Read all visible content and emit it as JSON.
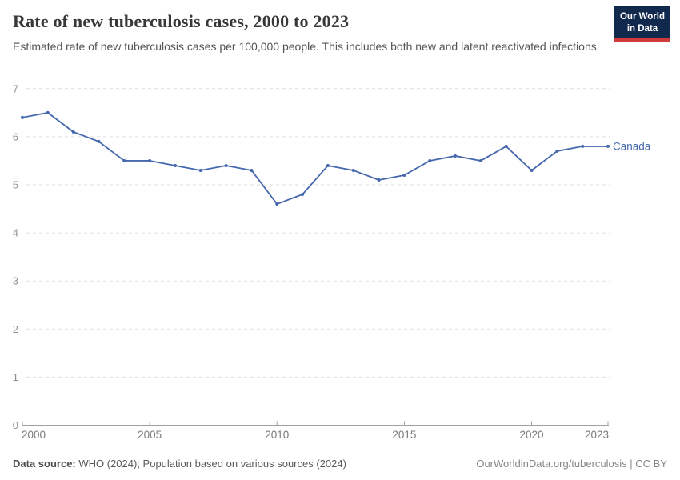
{
  "header": {
    "title": "Rate of new tuberculosis cases, 2000 to 2023",
    "subtitle": "Estimated rate of new tuberculosis cases per 100,000 people. This includes both new and latent reactivated infections.",
    "logo": {
      "line1": "Our World",
      "line2": "in Data"
    }
  },
  "chart_data": {
    "type": "line",
    "title": "Rate of new tuberculosis cases, 2000 to 2023",
    "x": [
      2000,
      2001,
      2002,
      2003,
      2004,
      2005,
      2006,
      2007,
      2008,
      2009,
      2010,
      2011,
      2012,
      2013,
      2014,
      2015,
      2016,
      2017,
      2018,
      2019,
      2020,
      2021,
      2022,
      2023
    ],
    "series": [
      {
        "name": "Canada",
        "values": [
          6.4,
          6.5,
          6.1,
          5.9,
          5.5,
          5.5,
          5.4,
          5.3,
          5.4,
          5.3,
          4.6,
          4.8,
          5.4,
          5.3,
          5.1,
          5.2,
          5.5,
          5.6,
          5.5,
          5.8,
          5.3,
          5.7,
          5.8,
          5.8
        ],
        "color": "#4467ad"
      }
    ],
    "xlabel": "",
    "ylabel": "",
    "ylim": [
      0,
      7
    ],
    "yticks": [
      0,
      1,
      2,
      3,
      4,
      5,
      6,
      7
    ],
    "xticks": [
      2000,
      2005,
      2010,
      2015,
      2020,
      2023
    ],
    "grid": "horizontal-dashed",
    "legend_position": "end-of-line-label"
  },
  "colors": {
    "line": "#4467ad",
    "grid": "#dddddd",
    "axis": "#a0a0a0",
    "y_tick_label": "#8f8f8f",
    "x_tick_label": "#7b7b7b",
    "logo_bg": "#12294e",
    "logo_stripe": "#d13b3e"
  },
  "footer": {
    "data_source_label": "Data source:",
    "data_source_text": " WHO (2024); Population based on various sources (2024)",
    "attribution": "OurWorldinData.org/tuberculosis | CC BY"
  }
}
